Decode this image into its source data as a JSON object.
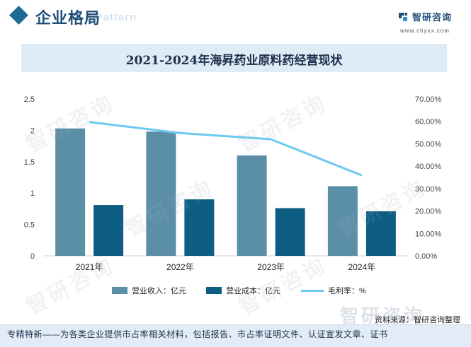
{
  "header": {
    "title": "企业格局",
    "bg_text": "e Pattern"
  },
  "logo": {
    "name": "智研咨询",
    "url": "www.chyxx.com",
    "icon": "zhiyan-logo-icon"
  },
  "chart_data": {
    "type": "bar",
    "title": "2021-2024年海昇药业原料药经营现状",
    "categories": [
      "2021年",
      "2022年",
      "2023年",
      "2024年"
    ],
    "series": [
      {
        "name": "营业收入：亿元",
        "type": "bar",
        "axis": "left",
        "color": "#5b8fa8",
        "values": [
          2.03,
          1.98,
          1.6,
          1.11
        ]
      },
      {
        "name": "营业成本：亿元",
        "type": "bar",
        "axis": "left",
        "color": "#0e5d82",
        "values": [
          0.81,
          0.9,
          0.76,
          0.71
        ]
      },
      {
        "name": "毛利率：%",
        "type": "line",
        "axis": "right",
        "color": "#6dc9ef",
        "values": [
          59.7,
          54.8,
          52.0,
          35.9
        ]
      }
    ],
    "y_left": {
      "min": 0,
      "max": 2.5,
      "ticks": [
        "0",
        "0.5",
        "1",
        "1.5",
        "2",
        "2.5"
      ]
    },
    "y_right": {
      "min": 0,
      "max": 70,
      "ticks": [
        "0.00%",
        "10.00%",
        "20.00%",
        "30.00%",
        "40.00%",
        "50.00%",
        "60.00%",
        "70.00%"
      ]
    },
    "grid": false,
    "legend": "bottom"
  },
  "watermark": {
    "text": "智研咨询"
  },
  "source": {
    "label": "资料来源：智研咨询整理",
    "logo_text": "智研咨询"
  },
  "footer": {
    "text": "专精特新——为各类企业提供市占率相关材料，包括报告、市占率证明文件、认证宣发文章、证书"
  }
}
